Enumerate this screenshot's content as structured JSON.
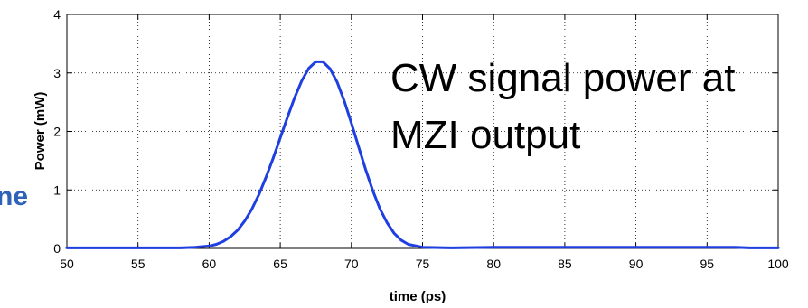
{
  "chart_data": {
    "type": "line",
    "title": "",
    "xlabel": "time (ps)",
    "ylabel": "Power (mW)",
    "xlim": [
      50,
      100
    ],
    "ylim": [
      0,
      4
    ],
    "x_ticks": [
      "50",
      "55",
      "60",
      "65",
      "70",
      "75",
      "80",
      "85",
      "90",
      "95",
      "100"
    ],
    "y_ticks": [
      "0",
      "1",
      "2",
      "3",
      "4"
    ],
    "grid": true,
    "series": [
      {
        "color": "#1f3fe0",
        "x": [
          50,
          55,
          58,
          59,
          60,
          60.5,
          61,
          61.5,
          62,
          62.5,
          63,
          63.5,
          64,
          64.5,
          65,
          65.5,
          66,
          66.5,
          67,
          67.5,
          68,
          68.5,
          69,
          69.5,
          70,
          70.5,
          71,
          71.5,
          72,
          72.5,
          73,
          73.5,
          74,
          75,
          77,
          80,
          85,
          90,
          95,
          97,
          98,
          100
        ],
        "y": [
          0.01,
          0.01,
          0.01,
          0.02,
          0.04,
          0.07,
          0.12,
          0.2,
          0.31,
          0.47,
          0.67,
          0.92,
          1.22,
          1.54,
          1.89,
          2.24,
          2.57,
          2.86,
          3.08,
          3.19,
          3.19,
          3.07,
          2.84,
          2.52,
          2.14,
          1.74,
          1.35,
          0.99,
          0.68,
          0.44,
          0.26,
          0.14,
          0.07,
          0.02,
          0.01,
          0.02,
          0.02,
          0.02,
          0.02,
          0.02,
          0.01,
          0.01
        ]
      }
    ],
    "annotations": [
      {
        "lines": [
          "CW signal power at",
          "MZI output"
        ]
      }
    ]
  },
  "edge_text": {
    "text": "ne",
    "color": "#2e63b8"
  }
}
